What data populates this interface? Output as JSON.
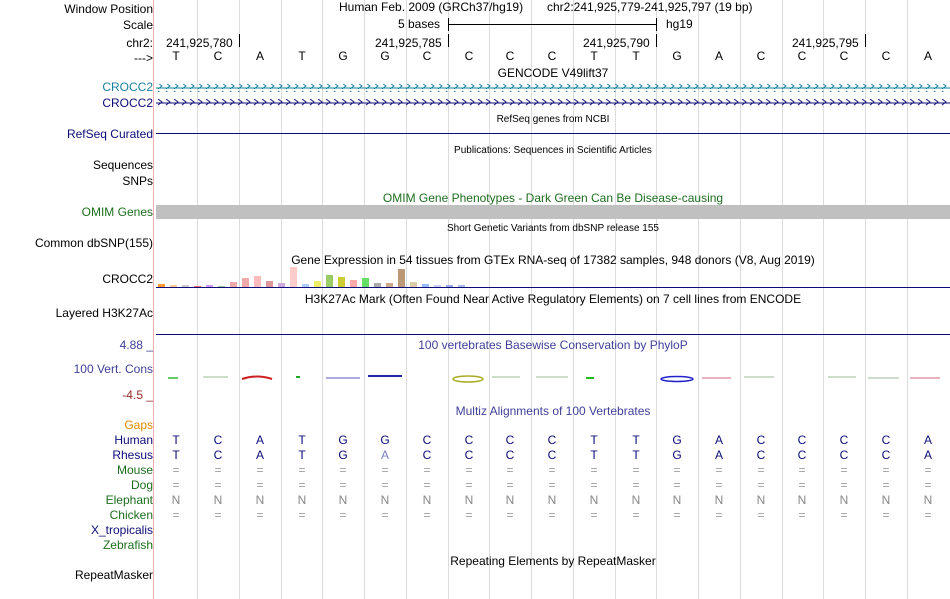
{
  "header": {
    "window_label": "Window Position",
    "scale_label": "Scale",
    "chrom_label": "chr2:",
    "seq_label": "--->",
    "assembly": "Human Feb. 2009 (GRCh37/hg19)",
    "position": "chr2:241,925,779-241,925,797 (19 bp)",
    "scale_text": "5 bases",
    "db": "hg19"
  },
  "ruler": [
    "241,925,780",
    "241,925,785",
    "241,925,790",
    "241,925,795"
  ],
  "bases": [
    "T",
    "C",
    "A",
    "T",
    "G",
    "G",
    "C",
    "C",
    "C",
    "C",
    "T",
    "T",
    "G",
    "A",
    "C",
    "C",
    "C",
    "C",
    "A"
  ],
  "tracks": {
    "gencode_title": "GENCODE V49lift37",
    "gencode_items": [
      "CROCC2",
      "CROCC2"
    ],
    "refseq_label": "RefSeq Curated",
    "refseq_title": "RefSeq genes from NCBI",
    "pubs_title": "Publications: Sequences in Scientific Articles",
    "sequences_label": "Sequences",
    "snps_label": "SNPs",
    "omim_title": "OMIM Gene Phenotypes - Dark Green Can Be Disease-causing",
    "omim_label": "OMIM Genes",
    "dbsnp_title": "Short Genetic Variants from dbSNP release 155",
    "dbsnp_label": "Common dbSNP(155)",
    "gtex_title": "Gene Expression in 54 tissues from GTEx RNA-seq of 17382 samples, 948 donors (V8, Aug 2019)",
    "gtex_label": "CROCC2",
    "h3k27_title": "H3K27Ac Mark (Often Found Near Active Regulatory Elements) on 7 cell lines from ENCODE",
    "h3k27_label": "Layered H3K27Ac",
    "phylop_title": "100 vertebrates Basewise Conservation by PhyloP",
    "phylop_label": "100 Vert. Cons",
    "phylop_max": "4.88 _",
    "phylop_min": "-4.5 _",
    "multiz_title": "Multiz Alignments of 100 Vertebrates",
    "gaps_label": "Gaps",
    "repeat_title": "Repeating Elements by RepeatMasker",
    "repeat_label": "RepeatMasker"
  },
  "alignment": {
    "species": [
      "Human",
      "Rhesus",
      "Mouse",
      "Dog",
      "Elephant",
      "Chicken",
      "X_tropicalis",
      "Zebrafish"
    ],
    "rows": [
      [
        "T",
        "C",
        "A",
        "T",
        "G",
        "G",
        "C",
        "C",
        "C",
        "C",
        "T",
        "T",
        "G",
        "A",
        "C",
        "C",
        "C",
        "C",
        "A"
      ],
      [
        "T",
        "C",
        "A",
        "T",
        "G",
        "A",
        "C",
        "C",
        "C",
        "C",
        "T",
        "T",
        "G",
        "A",
        "C",
        "C",
        "C",
        "C",
        "A"
      ],
      [
        "=",
        "=",
        "=",
        "=",
        "=",
        "=",
        "=",
        "=",
        "=",
        "=",
        "=",
        "=",
        "=",
        "=",
        "=",
        "=",
        "=",
        "=",
        "="
      ],
      [
        "=",
        "=",
        "=",
        "=",
        "=",
        "=",
        "=",
        "=",
        "=",
        "=",
        "=",
        "=",
        "=",
        "=",
        "=",
        "=",
        "=",
        "=",
        "="
      ],
      [
        "N",
        "N",
        "N",
        "N",
        "N",
        "N",
        "N",
        "N",
        "N",
        "N",
        "N",
        "N",
        "N",
        "N",
        "N",
        "N",
        "N",
        "N",
        "N"
      ],
      [
        "=",
        "=",
        "=",
        "=",
        "=",
        "=",
        "=",
        "=",
        "=",
        "=",
        "=",
        "=",
        "=",
        "=",
        "=",
        "=",
        "=",
        "=",
        "="
      ]
    ]
  },
  "colors": {
    "gencode": "#1a7f9e",
    "navy": "#0c0c78",
    "omim": "#1e6e1e",
    "gaps": "#e08a00",
    "phylop": "#404098",
    "phylop_min": "#962828",
    "mismatch": "#7c7cc8",
    "gray": "#a0a0a0",
    "elephant": "#888888"
  },
  "gtex_bars": [
    {
      "color": "#ff9933",
      "v": 0.15
    },
    {
      "color": "#ffcc99",
      "v": 0.12
    },
    {
      "color": "#cccccc",
      "v": 0.08
    },
    {
      "color": "#ff6666",
      "v": 0.06
    },
    {
      "color": "#cc99ff",
      "v": 0.1
    },
    {
      "color": "#99cc99",
      "v": 0.07
    },
    {
      "color": "#eeaaaa",
      "v": 0.25
    },
    {
      "color": "#eeaaaa",
      "v": 0.45
    },
    {
      "color": "#ffbbbb",
      "v": 0.55
    },
    {
      "color": "#dd9999",
      "v": 0.3
    },
    {
      "color": "#ccaadd",
      "v": 0.18
    },
    {
      "color": "#ffcccc",
      "v": 1.0
    },
    {
      "color": "#aaccff",
      "v": 0.14
    },
    {
      "color": "#eeee66",
      "v": 0.28
    },
    {
      "color": "#99cc66",
      "v": 0.62
    },
    {
      "color": "#cccc33",
      "v": 0.5
    },
    {
      "color": "#ffaaaa",
      "v": 0.36
    },
    {
      "color": "#66dd66",
      "v": 0.45
    },
    {
      "color": "#aaaaaa",
      "v": 0.2
    },
    {
      "color": "#ccaa88",
      "v": 0.2
    },
    {
      "color": "#bb9977",
      "v": 0.9
    },
    {
      "color": "#ddccaa",
      "v": 0.25
    },
    {
      "color": "#99bbff",
      "v": 0.15
    },
    {
      "color": "#ccccff",
      "v": 0.12
    },
    {
      "color": "#99aaee",
      "v": 0.1
    },
    {
      "color": "#aabbee",
      "v": 0.1
    }
  ]
}
